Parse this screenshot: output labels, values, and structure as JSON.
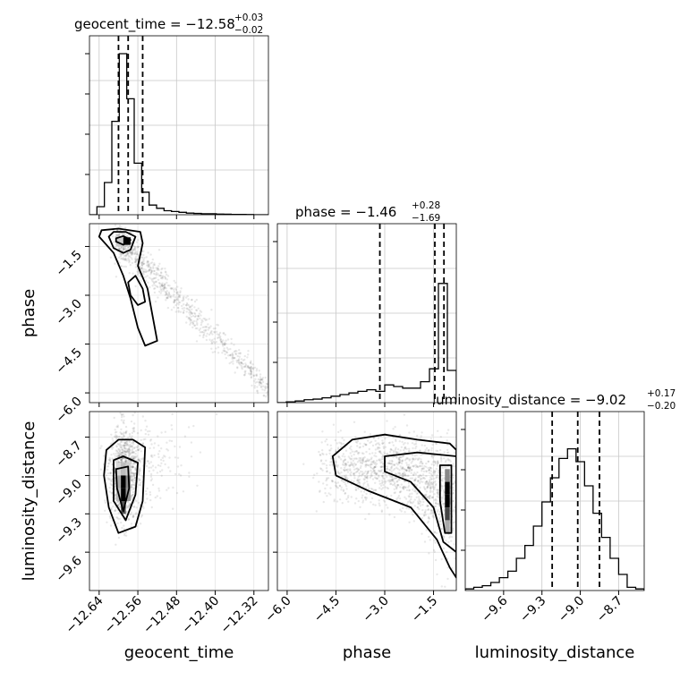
{
  "chart_data": {
    "type": "corner",
    "parameters": [
      "geocent_time",
      "phase",
      "luminosity_distance"
    ],
    "titles": [
      {
        "parameter": "geocent_time",
        "prefix": "geocent_time = ",
        "median": "−12.58",
        "plus": "+0.03",
        "minus": "−0.02"
      },
      {
        "parameter": "phase",
        "prefix": "phase = ",
        "median": "−1.46",
        "plus": "+0.28",
        "minus": "−1.69"
      },
      {
        "parameter": "luminosity_distance",
        "prefix": "luminosity_distance = ",
        "median": "−9.02",
        "plus": "+0.17",
        "minus": "−0.20"
      }
    ],
    "axes": {
      "geocent_time": {
        "range": [
          -12.66,
          -12.29
        ],
        "ticks": [
          -12.64,
          -12.56,
          -12.48,
          -12.4,
          -12.32
        ],
        "tick_labels": [
          "−12.64",
          "−12.56",
          "−12.48",
          "−12.40",
          "−12.32"
        ],
        "quantiles": [
          -12.6,
          -12.58,
          -12.55
        ]
      },
      "phase": {
        "range": [
          -6.3,
          -0.8
        ],
        "ticks": [
          -6.0,
          -4.5,
          -3.0,
          -1.5
        ],
        "tick_labels": [
          "−6.0",
          "−4.5",
          "−3.0",
          "−1.5"
        ],
        "quantiles": [
          -3.15,
          -1.46,
          -1.18
        ]
      },
      "luminosity_distance": {
        "range": [
          -9.9,
          -8.5
        ],
        "ticks": [
          -9.6,
          -9.3,
          -9.0,
          -8.7
        ],
        "tick_labels": [
          "−9.6",
          "−9.3",
          "−9.0",
          "−8.7"
        ],
        "quantiles": [
          -9.22,
          -9.02,
          -8.85
        ]
      }
    },
    "histograms": {
      "geocent_time": [
        0,
        0.05,
        0.2,
        0.58,
        1.0,
        0.72,
        0.32,
        0.14,
        0.06,
        0.04,
        0.025,
        0.02,
        0.015,
        0.01,
        0.008,
        0.006,
        0.006,
        0.004,
        0.003,
        0.002,
        0.002,
        0.001,
        0,
        0
      ],
      "phase": [
        0.0,
        0.005,
        0.01,
        0.018,
        0.022,
        0.03,
        0.04,
        0.05,
        0.06,
        0.07,
        0.08,
        0.07,
        0.11,
        0.1,
        0.09,
        0.09,
        0.13,
        0.21,
        0.74,
        0.2
      ],
      "luminosity_distance": [
        0.01,
        0.02,
        0.03,
        0.05,
        0.08,
        0.12,
        0.2,
        0.28,
        0.4,
        0.55,
        0.7,
        0.82,
        0.88,
        0.8,
        0.65,
        0.48,
        0.33,
        0.2,
        0.1,
        0.02,
        0.01
      ]
    },
    "grid": true,
    "xlabel_rotation": 45
  }
}
